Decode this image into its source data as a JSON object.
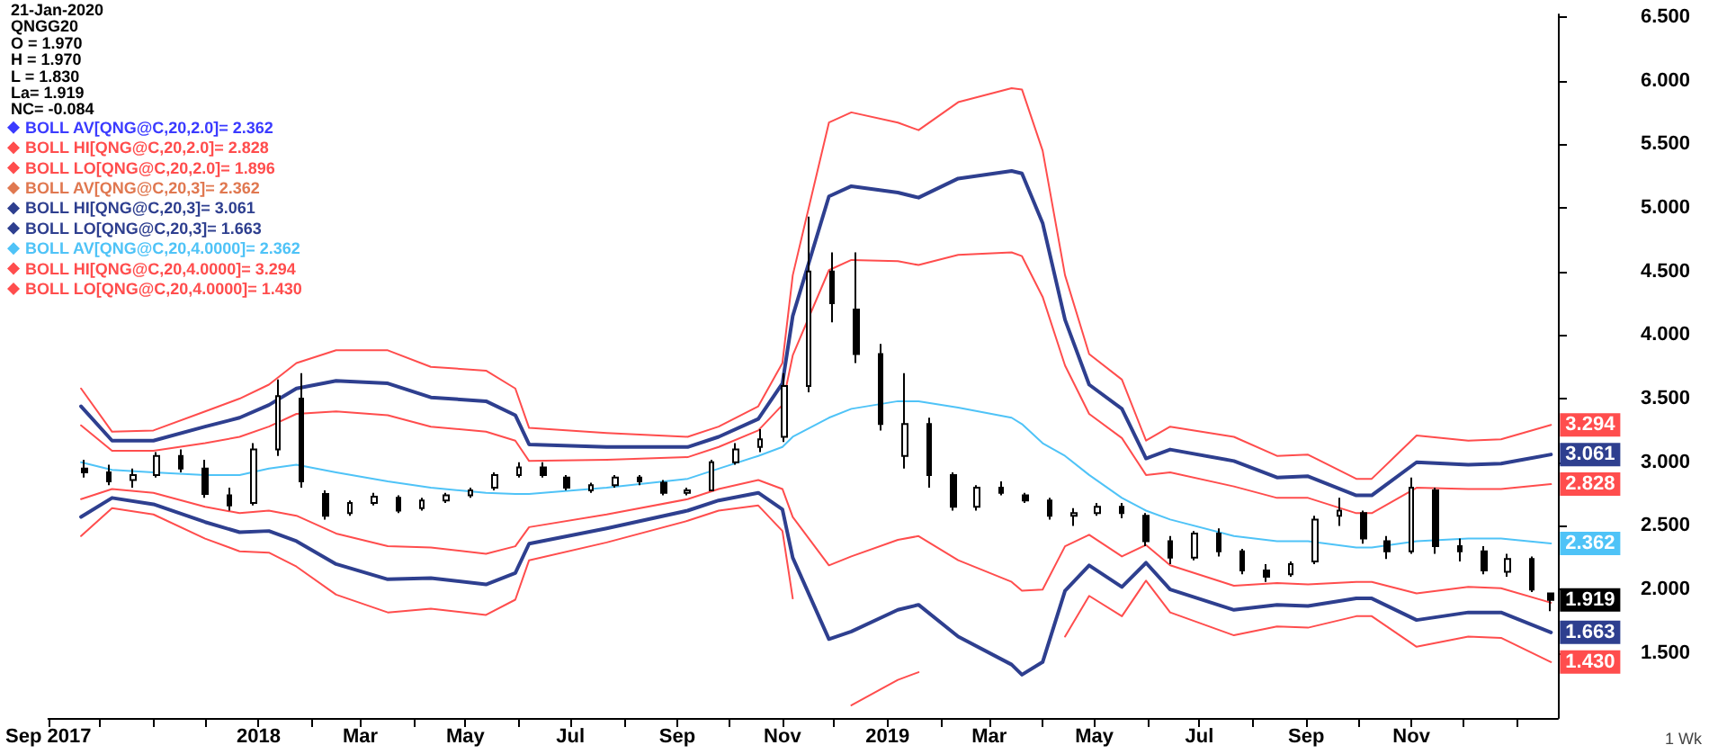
{
  "chart_data": {
    "type": "candlestick",
    "color": "#000000",
    "annotations": [
      "21-Jan-2020",
      "QNGG20",
      "O = 1.970",
      "H = 1.970",
      "L = 1.830",
      "La= 1.919",
      "NC= -0.084",
      {
        "text": "1.919",
        "x": "2020-01-21",
        "y": 1.919
      },
      "1 Wk"
    ],
    "x": [
      "2017-09-22",
      "2017-10-06",
      "2017-10-20",
      "2017-11-03",
      "2017-11-17",
      "2017-12-01",
      "2017-12-15",
      "2017-12-29",
      "2018-01-12",
      "2018-01-26",
      "2018-02-09",
      "2018-02-23",
      "2018-03-09",
      "2018-03-23",
      "2018-04-06",
      "2018-04-20",
      "2018-05-04",
      "2018-05-18",
      "2018-06-01",
      "2018-06-15",
      "2018-06-29",
      "2018-07-13",
      "2018-07-27",
      "2018-08-10",
      "2018-08-24",
      "2018-09-07",
      "2018-09-21",
      "2018-10-05",
      "2018-10-19",
      "2018-11-02",
      "2018-11-16",
      "2018-11-30",
      "2018-12-14",
      "2018-12-28",
      "2019-01-11",
      "2019-01-25",
      "2019-02-08",
      "2019-02-22",
      "2019-03-08",
      "2019-03-22",
      "2019-04-05",
      "2019-04-19",
      "2019-05-03",
      "2019-05-17",
      "2019-05-31",
      "2019-06-14",
      "2019-06-28",
      "2019-07-12",
      "2019-07-26",
      "2019-08-09",
      "2019-08-23",
      "2019-09-06",
      "2019-09-20",
      "2019-10-04",
      "2019-10-18",
      "2019-11-01",
      "2019-11-15",
      "2019-11-29",
      "2019-12-13",
      "2019-12-27",
      "2020-01-10",
      "2020-01-21"
    ],
    "ohlc": [
      [
        2.95,
        3.02,
        2.88,
        2.92
      ],
      [
        2.92,
        2.98,
        2.82,
        2.85
      ],
      [
        2.86,
        2.95,
        2.8,
        2.9
      ],
      [
        2.9,
        3.08,
        2.88,
        3.05
      ],
      [
        3.05,
        3.1,
        2.92,
        2.95
      ],
      [
        2.95,
        3.02,
        2.72,
        2.75
      ],
      [
        2.74,
        2.8,
        2.62,
        2.66
      ],
      [
        2.68,
        3.15,
        2.66,
        3.1
      ],
      [
        3.1,
        3.65,
        3.05,
        3.52
      ],
      [
        3.5,
        3.7,
        2.8,
        2.85
      ],
      [
        2.75,
        2.78,
        2.55,
        2.58
      ],
      [
        2.6,
        2.7,
        2.58,
        2.68
      ],
      [
        2.68,
        2.76,
        2.66,
        2.73
      ],
      [
        2.72,
        2.74,
        2.6,
        2.62
      ],
      [
        2.64,
        2.72,
        2.62,
        2.7
      ],
      [
        2.7,
        2.76,
        2.68,
        2.74
      ],
      [
        2.74,
        2.8,
        2.72,
        2.78
      ],
      [
        2.8,
        2.92,
        2.78,
        2.9
      ],
      [
        2.9,
        3.0,
        2.88,
        2.96
      ],
      [
        2.96,
        3.0,
        2.88,
        2.9
      ],
      [
        2.88,
        2.9,
        2.78,
        2.8
      ],
      [
        2.78,
        2.84,
        2.76,
        2.82
      ],
      [
        2.82,
        2.9,
        2.8,
        2.88
      ],
      [
        2.88,
        2.9,
        2.82,
        2.85
      ],
      [
        2.84,
        2.86,
        2.74,
        2.76
      ],
      [
        2.76,
        2.8,
        2.74,
        2.78
      ],
      [
        2.78,
        3.02,
        2.78,
        3.0
      ],
      [
        3.0,
        3.15,
        2.98,
        3.1
      ],
      [
        3.12,
        3.26,
        3.08,
        3.18
      ],
      [
        3.2,
        3.7,
        3.16,
        3.6
      ],
      [
        3.6,
        4.93,
        3.55,
        4.5
      ],
      [
        4.5,
        4.65,
        4.1,
        4.25
      ],
      [
        4.2,
        4.65,
        3.78,
        3.85
      ],
      [
        3.85,
        3.93,
        3.25,
        3.3
      ],
      [
        3.05,
        3.7,
        2.95,
        3.3
      ],
      [
        3.3,
        3.35,
        2.8,
        2.9
      ],
      [
        2.9,
        2.92,
        2.62,
        2.65
      ],
      [
        2.65,
        2.82,
        2.62,
        2.8
      ],
      [
        2.8,
        2.85,
        2.74,
        2.76
      ],
      [
        2.74,
        2.76,
        2.68,
        2.7
      ],
      [
        2.7,
        2.72,
        2.55,
        2.58
      ],
      [
        2.58,
        2.64,
        2.5,
        2.6
      ],
      [
        2.6,
        2.68,
        2.58,
        2.65
      ],
      [
        2.65,
        2.68,
        2.56,
        2.6
      ],
      [
        2.58,
        2.6,
        2.34,
        2.38
      ],
      [
        2.38,
        2.42,
        2.2,
        2.25
      ],
      [
        2.25,
        2.46,
        2.23,
        2.44
      ],
      [
        2.44,
        2.48,
        2.26,
        2.3
      ],
      [
        2.3,
        2.32,
        2.12,
        2.15
      ],
      [
        2.15,
        2.2,
        2.06,
        2.1
      ],
      [
        2.12,
        2.22,
        2.1,
        2.2
      ],
      [
        2.22,
        2.58,
        2.2,
        2.55
      ],
      [
        2.58,
        2.72,
        2.5,
        2.62
      ],
      [
        2.6,
        2.62,
        2.36,
        2.4
      ],
      [
        2.38,
        2.42,
        2.24,
        2.3
      ],
      [
        2.3,
        2.88,
        2.28,
        2.8
      ],
      [
        2.78,
        2.8,
        2.28,
        2.34
      ],
      [
        2.34,
        2.4,
        2.22,
        2.3
      ],
      [
        2.3,
        2.34,
        2.12,
        2.15
      ],
      [
        2.14,
        2.28,
        2.1,
        2.24
      ],
      [
        2.24,
        2.26,
        1.98,
        2.0
      ],
      [
        1.97,
        1.97,
        1.83,
        1.919
      ]
    ],
    "series": [
      {
        "name": "BOLL AV[QNG@C,20,2.0]= 2.362",
        "type": "line",
        "color": "#3b3bff",
        "values": [
          null,
          null,
          null,
          null,
          null,
          null,
          null,
          null,
          null,
          null,
          null,
          null,
          null,
          null,
          null,
          null,
          null,
          null,
          null,
          null,
          null,
          null,
          null,
          null,
          null,
          null,
          null,
          null,
          null,
          null,
          null,
          null,
          null,
          null,
          null,
          null,
          null,
          null,
          null,
          null,
          null,
          null,
          null,
          null,
          null,
          null,
          null,
          null,
          null,
          null,
          null,
          null,
          null,
          null,
          null,
          null,
          null,
          null,
          null,
          null,
          null,
          null
        ]
      },
      {
        "name": "BOLL HI[QNG@C,20,2.0]= 2.828",
        "type": "line",
        "color": "#ff4d4d",
        "x": [
          "2017-09-20",
          "2017-10-08",
          "2017-11-01",
          "2017-12-01",
          "2017-12-21",
          "2018-01-07",
          "2018-01-23",
          "2018-02-15",
          "2018-03-17",
          "2018-04-11",
          "2018-05-13",
          "2018-05-30",
          "2018-06-07",
          "2018-07-22",
          "2018-09-07",
          "2018-09-25",
          "2018-10-18",
          "2018-11-01",
          "2018-11-07",
          "2018-11-28",
          "2018-12-11",
          "2019-01-07",
          "2019-01-19",
          "2019-02-11",
          "2019-03-14",
          "2019-03-20",
          "2019-04-01",
          "2019-04-14",
          "2019-04-28",
          "2019-05-17",
          "2019-05-31",
          "2019-06-14",
          "2019-07-21",
          "2019-08-15",
          "2019-09-02",
          "2019-09-30",
          "2019-10-09",
          "2019-11-04",
          "2019-12-04",
          "2019-12-23",
          "2020-01-21"
        ],
        "values": [
          3.29,
          3.09,
          3.09,
          3.15,
          3.2,
          3.28,
          3.38,
          3.4,
          3.37,
          3.28,
          3.24,
          3.17,
          3.01,
          3.02,
          3.04,
          3.12,
          3.25,
          3.45,
          3.84,
          4.51,
          4.59,
          4.58,
          4.55,
          4.63,
          4.65,
          4.62,
          4.3,
          3.76,
          3.38,
          3.19,
          2.9,
          2.92,
          2.81,
          2.72,
          2.72,
          2.6,
          2.6,
          2.8,
          2.79,
          2.79,
          2.828
        ],
        "value_labels": [
          null,
          null,
          null,
          null,
          null,
          null,
          null,
          null,
          null,
          null,
          null,
          null,
          null,
          null,
          null,
          null,
          null,
          null,
          null,
          null,
          null,
          null,
          null,
          null,
          null,
          null,
          null,
          null,
          null,
          null,
          null,
          null,
          null,
          null,
          null,
          null,
          null,
          null,
          null,
          null,
          "2.828"
        ]
      },
      {
        "name": "BOLL LO[QNG@C,20,2.0]= 1.896",
        "type": "line",
        "color": "#ff4d4d",
        "x": [
          "2017-09-20",
          "2017-10-08",
          "2017-11-01",
          "2017-12-01",
          "2017-12-21",
          "2018-01-07",
          "2018-01-23",
          "2018-02-15",
          "2018-03-17",
          "2018-04-11",
          "2018-05-13",
          "2018-05-30",
          "2018-06-07",
          "2018-07-22",
          "2018-09-07",
          "2018-09-25",
          "2018-10-18",
          "2018-11-01",
          "2018-11-07",
          "2018-11-28",
          "2018-12-11",
          "2019-01-07",
          "2019-01-19",
          "2019-02-11",
          "2019-03-14",
          "2019-03-20",
          "2019-04-01",
          "2019-04-14",
          "2019-04-28",
          "2019-05-17",
          "2019-05-31",
          "2019-06-14",
          "2019-07-21",
          "2019-08-15",
          "2019-09-02",
          "2019-09-30",
          "2019-10-09",
          "2019-11-04",
          "2019-12-04",
          "2019-12-23",
          "2020-01-21"
        ],
        "values": [
          2.71,
          2.79,
          2.76,
          2.65,
          2.6,
          2.62,
          2.58,
          2.44,
          2.34,
          2.33,
          2.28,
          2.34,
          2.49,
          2.59,
          2.71,
          2.79,
          2.86,
          2.79,
          2.57,
          2.19,
          2.26,
          2.39,
          2.42,
          2.23,
          2.06,
          1.99,
          2.0,
          2.34,
          2.43,
          2.26,
          2.35,
          2.19,
          2.03,
          2.05,
          2.04,
          2.06,
          2.06,
          1.97,
          2.02,
          2.01,
          1.896
        ]
      },
      {
        "name": "BOLL AV[QNG@C,20,3]= 2.362",
        "type": "line",
        "color": "#e07850",
        "values": [
          null,
          null,
          null,
          null,
          null,
          null,
          null,
          null,
          null,
          null,
          null,
          null,
          null,
          null,
          null,
          null,
          null,
          null,
          null,
          null,
          null,
          null,
          null,
          null,
          null,
          null,
          null,
          null,
          null,
          null,
          null,
          null,
          null,
          null,
          null,
          null,
          null,
          null,
          null,
          null,
          null,
          null,
          null,
          null,
          null,
          null,
          null,
          null,
          null,
          null,
          null,
          null,
          null,
          null,
          null,
          null,
          null,
          null,
          null,
          null,
          null,
          null
        ]
      },
      {
        "name": "BOLL HI[QNG@C,20,3]= 3.061",
        "type": "line",
        "color": "#2e3f8f",
        "x": [
          "2017-09-20",
          "2017-10-08",
          "2017-11-01",
          "2017-12-01",
          "2017-12-21",
          "2018-01-07",
          "2018-01-23",
          "2018-02-15",
          "2018-03-17",
          "2018-04-11",
          "2018-05-13",
          "2018-05-30",
          "2018-06-07",
          "2018-07-22",
          "2018-09-07",
          "2018-09-25",
          "2018-10-18",
          "2018-11-01",
          "2018-11-07",
          "2018-11-28",
          "2018-12-11",
          "2019-01-07",
          "2019-01-19",
          "2019-02-11",
          "2019-03-14",
          "2019-03-20",
          "2019-04-01",
          "2019-04-14",
          "2019-04-28",
          "2019-05-17",
          "2019-05-31",
          "2019-06-14",
          "2019-07-21",
          "2019-08-15",
          "2019-09-02",
          "2019-09-30",
          "2019-10-09",
          "2019-11-04",
          "2019-12-04",
          "2019-12-23",
          "2020-01-21"
        ],
        "values": [
          3.44,
          3.17,
          3.17,
          3.28,
          3.35,
          3.45,
          3.58,
          3.64,
          3.62,
          3.51,
          3.48,
          3.37,
          3.14,
          3.12,
          3.12,
          3.2,
          3.34,
          3.62,
          4.15,
          5.09,
          5.17,
          5.12,
          5.08,
          5.23,
          5.29,
          5.27,
          4.88,
          4.12,
          3.61,
          3.42,
          3.03,
          3.1,
          3.01,
          2.88,
          2.89,
          2.74,
          2.74,
          3.0,
          2.98,
          2.99,
          3.061
        ],
        "value_labels": [
          null,
          null,
          null,
          null,
          null,
          null,
          null,
          null,
          null,
          null,
          null,
          null,
          null,
          null,
          null,
          null,
          null,
          null,
          null,
          null,
          null,
          null,
          null,
          null,
          null,
          null,
          null,
          null,
          null,
          null,
          null,
          null,
          null,
          null,
          null,
          null,
          null,
          null,
          null,
          null,
          "3.061"
        ]
      },
      {
        "name": "BOLL LO[QNG@C,20,3]= 1.663",
        "type": "line",
        "color": "#2e3f8f",
        "x": [
          "2017-09-20",
          "2017-10-08",
          "2017-11-01",
          "2017-12-01",
          "2017-12-21",
          "2018-01-07",
          "2018-01-23",
          "2018-02-15",
          "2018-03-17",
          "2018-04-11",
          "2018-05-13",
          "2018-05-30",
          "2018-06-07",
          "2018-07-22",
          "2018-09-07",
          "2018-09-25",
          "2018-10-18",
          "2018-11-01",
          "2018-11-07",
          "2018-11-28",
          "2018-12-11",
          "2019-01-07",
          "2019-01-19",
          "2019-02-11",
          "2019-03-14",
          "2019-03-20",
          "2019-04-01",
          "2019-04-14",
          "2019-04-28",
          "2019-05-17",
          "2019-05-31",
          "2019-06-14",
          "2019-07-21",
          "2019-08-15",
          "2019-09-02",
          "2019-09-30",
          "2019-10-09",
          "2019-11-04",
          "2019-12-04",
          "2019-12-23",
          "2020-01-21"
        ],
        "values": [
          2.57,
          2.72,
          2.67,
          2.53,
          2.45,
          2.46,
          2.38,
          2.2,
          2.08,
          2.09,
          2.04,
          2.13,
          2.36,
          2.48,
          2.62,
          2.7,
          2.76,
          2.63,
          2.25,
          1.61,
          1.67,
          1.84,
          1.88,
          1.63,
          1.41,
          1.33,
          1.43,
          1.99,
          2.19,
          2.02,
          2.21,
          2.0,
          1.84,
          1.88,
          1.87,
          1.93,
          1.93,
          1.76,
          1.82,
          1.82,
          1.663
        ],
        "value_labels": [
          null,
          null,
          null,
          null,
          null,
          null,
          null,
          null,
          null,
          null,
          null,
          null,
          null,
          null,
          null,
          null,
          null,
          null,
          null,
          null,
          null,
          null,
          null,
          null,
          null,
          null,
          null,
          null,
          null,
          null,
          null,
          null,
          null,
          null,
          null,
          null,
          null,
          null,
          null,
          null,
          "1.663"
        ]
      },
      {
        "name": "BOLL AV[QNG@C,20,4.0000]= 2.362",
        "type": "line",
        "color": "#4fc3f7",
        "x": [
          "2017-09-20",
          "2017-10-08",
          "2017-11-01",
          "2017-12-01",
          "2017-12-21",
          "2018-01-07",
          "2018-01-23",
          "2018-02-15",
          "2018-03-17",
          "2018-04-11",
          "2018-05-13",
          "2018-05-30",
          "2018-06-07",
          "2018-07-22",
          "2018-09-07",
          "2018-09-25",
          "2018-10-18",
          "2018-11-01",
          "2018-11-07",
          "2018-11-28",
          "2018-12-11",
          "2019-01-07",
          "2019-01-19",
          "2019-02-11",
          "2019-03-14",
          "2019-03-20",
          "2019-04-01",
          "2019-04-14",
          "2019-04-28",
          "2019-05-17",
          "2019-05-31",
          "2019-06-14",
          "2019-07-21",
          "2019-08-15",
          "2019-09-02",
          "2019-09-30",
          "2019-10-09",
          "2019-11-04",
          "2019-12-04",
          "2019-12-23",
          "2020-01-21"
        ],
        "values": [
          3.0,
          2.94,
          2.92,
          2.9,
          2.9,
          2.95,
          2.98,
          2.92,
          2.85,
          2.8,
          2.76,
          2.75,
          2.75,
          2.8,
          2.87,
          2.95,
          3.05,
          3.12,
          3.2,
          3.35,
          3.42,
          3.48,
          3.48,
          3.43,
          3.35,
          3.3,
          3.15,
          3.05,
          2.9,
          2.72,
          2.62,
          2.55,
          2.42,
          2.38,
          2.38,
          2.33,
          2.33,
          2.38,
          2.4,
          2.4,
          2.362
        ],
        "value_labels": [
          null,
          null,
          null,
          null,
          null,
          null,
          null,
          null,
          null,
          null,
          null,
          null,
          null,
          null,
          null,
          null,
          null,
          null,
          null,
          null,
          null,
          null,
          null,
          null,
          null,
          null,
          null,
          null,
          null,
          null,
          null,
          null,
          null,
          null,
          null,
          null,
          null,
          null,
          null,
          null,
          "2.362"
        ]
      },
      {
        "name": "BOLL HI[QNG@C,20,4.0000]= 3.294",
        "type": "line",
        "color": "#ff4d4d",
        "x": [
          "2017-09-20",
          "2017-10-08",
          "2017-11-01",
          "2017-12-01",
          "2017-12-21",
          "2018-01-07",
          "2018-01-23",
          "2018-02-15",
          "2018-03-17",
          "2018-04-11",
          "2018-05-13",
          "2018-05-30",
          "2018-06-07",
          "2018-07-22",
          "2018-09-07",
          "2018-09-25",
          "2018-10-18",
          "2018-11-01",
          "2018-11-07",
          "2018-11-28",
          "2018-12-11",
          "2019-01-07",
          "2019-01-19",
          "2019-02-11",
          "2019-03-14",
          "2019-03-20",
          "2019-04-01",
          "2019-04-14",
          "2019-04-28",
          "2019-05-17",
          "2019-05-31",
          "2019-06-14",
          "2019-07-21",
          "2019-08-15",
          "2019-09-02",
          "2019-09-30",
          "2019-10-09",
          "2019-11-04",
          "2019-12-04",
          "2019-12-23",
          "2020-01-21"
        ],
        "values": [
          3.58,
          3.24,
          3.25,
          3.4,
          3.5,
          3.61,
          3.78,
          3.88,
          3.88,
          3.75,
          3.72,
          3.58,
          3.27,
          3.23,
          3.2,
          3.28,
          3.44,
          3.78,
          4.47,
          5.67,
          5.75,
          5.67,
          5.61,
          5.83,
          5.94,
          5.93,
          5.45,
          4.47,
          3.85,
          3.65,
          3.17,
          3.28,
          3.2,
          3.05,
          3.06,
          2.87,
          2.87,
          3.21,
          3.17,
          3.18,
          3.294
        ],
        "value_labels": [
          null,
          null,
          null,
          null,
          null,
          null,
          null,
          null,
          null,
          null,
          null,
          null,
          null,
          null,
          null,
          null,
          null,
          null,
          null,
          null,
          null,
          null,
          null,
          null,
          null,
          null,
          null,
          null,
          null,
          null,
          null,
          null,
          null,
          null,
          null,
          null,
          null,
          null,
          null,
          null,
          "3.294"
        ]
      },
      {
        "name": "BOLL LO[QNG@C,20,4.0000]= 1.430",
        "type": "line",
        "color": "#ff4d4d",
        "x": [
          "2017-09-20",
          "2017-10-08",
          "2017-11-01",
          "2017-12-01",
          "2017-12-21",
          "2018-01-07",
          "2018-01-23",
          "2018-02-15",
          "2018-03-17",
          "2018-04-11",
          "2018-05-13",
          "2018-05-30",
          "2018-06-07",
          "2018-07-22",
          "2018-09-07",
          "2018-09-25",
          "2018-10-18",
          "2018-11-01",
          "2018-11-07",
          "2018-11-28",
          "2018-12-11",
          "2019-01-07",
          "2019-01-19",
          "2019-02-11",
          "2019-03-14",
          "2019-03-20",
          "2019-04-01",
          "2019-04-14",
          "2019-04-28",
          "2019-05-17",
          "2019-05-31",
          "2019-06-14",
          "2019-07-21",
          "2019-08-15",
          "2019-09-02",
          "2019-09-30",
          "2019-10-09",
          "2019-11-04",
          "2019-12-04",
          "2019-12-23",
          "2020-01-21"
        ],
        "values": [
          2.42,
          2.64,
          2.59,
          2.4,
          2.3,
          2.29,
          2.18,
          1.96,
          1.82,
          1.85,
          1.8,
          1.92,
          2.23,
          2.37,
          2.54,
          2.62,
          2.66,
          2.46,
          1.93,
          null,
          1.09,
          1.29,
          1.35,
          null,
          null,
          null,
          null,
          1.63,
          1.95,
          1.79,
          2.07,
          1.82,
          1.64,
          1.71,
          1.7,
          1.79,
          1.79,
          1.55,
          1.63,
          1.62,
          1.43
        ],
        "value_labels": [
          null,
          null,
          null,
          null,
          null,
          null,
          null,
          null,
          null,
          null,
          null,
          null,
          null,
          null,
          null,
          null,
          null,
          null,
          null,
          null,
          null,
          null,
          null,
          null,
          null,
          null,
          null,
          null,
          null,
          null,
          null,
          null,
          null,
          null,
          null,
          null,
          null,
          null,
          null,
          null,
          "1.430"
        ]
      }
    ],
    "xlim": [
      "2017-09-01",
      "2020-01-25"
    ],
    "xticks": [
      {
        "value": "2017-09-01",
        "label": "Sep 2017"
      },
      {
        "value": "2017-10-01",
        "label": null
      },
      {
        "value": "2017-11-01",
        "label": null
      },
      {
        "value": "2017-12-01",
        "label": null
      },
      {
        "value": "2018-01-01",
        "label": "2018"
      },
      {
        "value": "2018-02-01",
        "label": null
      },
      {
        "value": "2018-03-01",
        "label": "Mar"
      },
      {
        "value": "2018-04-01",
        "label": null
      },
      {
        "value": "2018-05-01",
        "label": "May"
      },
      {
        "value": "2018-06-01",
        "label": null
      },
      {
        "value": "2018-07-01",
        "label": "Jul"
      },
      {
        "value": "2018-08-01",
        "label": null
      },
      {
        "value": "2018-09-01",
        "label": "Sep"
      },
      {
        "value": "2018-10-01",
        "label": null
      },
      {
        "value": "2018-11-01",
        "label": "Nov"
      },
      {
        "value": "2018-12-01",
        "label": null
      },
      {
        "value": "2019-01-01",
        "label": "2019"
      },
      {
        "value": "2019-02-01",
        "label": null
      },
      {
        "value": "2019-03-01",
        "label": "Mar"
      },
      {
        "value": "2019-04-01",
        "label": null
      },
      {
        "value": "2019-05-01",
        "label": "May"
      },
      {
        "value": "2019-06-01",
        "label": null
      },
      {
        "value": "2019-07-01",
        "label": "Jul"
      },
      {
        "value": "2019-08-01",
        "label": null
      },
      {
        "value": "2019-09-01",
        "label": "Sep"
      },
      {
        "value": "2019-10-01",
        "label": null
      },
      {
        "value": "2019-11-01",
        "label": "Nov"
      },
      {
        "value": "2019-12-01",
        "label": null
      },
      {
        "value": "2020-01-01",
        "label": null
      }
    ],
    "ylim": [
      0.99,
      6.52
    ],
    "yticks": [
      {
        "value": 1.5,
        "label": "1.500"
      },
      {
        "value": 2,
        "label": "2.000"
      },
      {
        "value": 2.5,
        "label": "2.500"
      },
      {
        "value": 3,
        "label": "3.000"
      },
      {
        "value": 3.5,
        "label": "3.500"
      },
      {
        "value": 4,
        "label": "4.000"
      },
      {
        "value": 4.5,
        "label": "4.500"
      },
      {
        "value": 5,
        "label": "5.000"
      },
      {
        "value": 5.5,
        "label": "5.500"
      },
      {
        "value": 6,
        "label": "6.000"
      },
      {
        "value": 6.5,
        "label": "6.500"
      }
    ],
    "legend": "top left",
    "marker": "none",
    "line_style": "solid",
    "grid": false
  }
}
